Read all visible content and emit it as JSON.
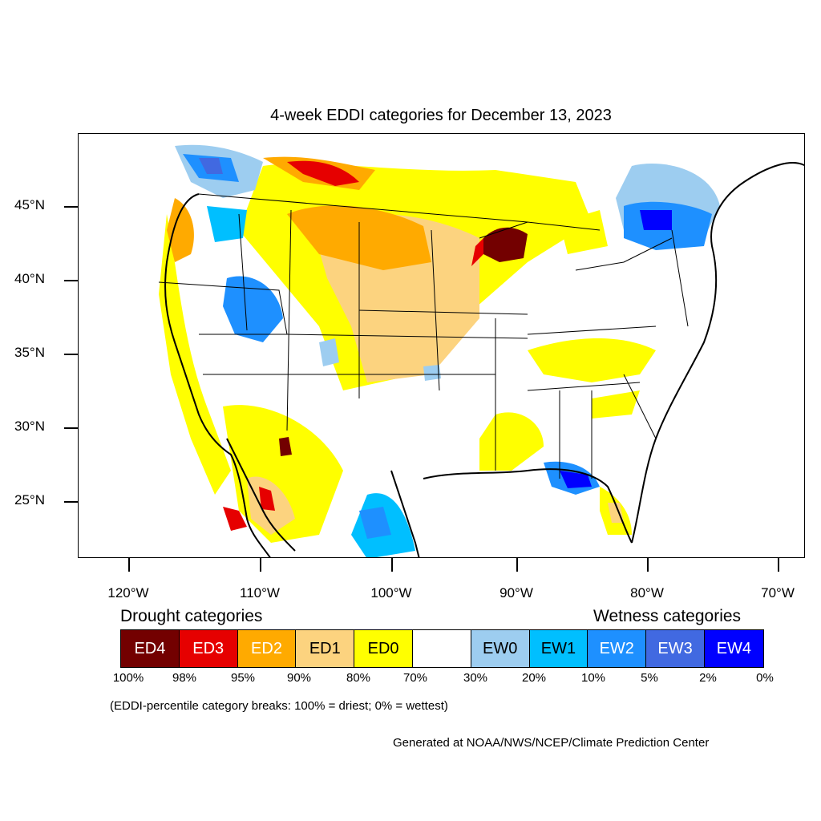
{
  "title": "4-week EDDI categories for December 13, 2023",
  "lat_labels": [
    "45°N",
    "40°N",
    "35°N",
    "30°N",
    "25°N"
  ],
  "lon_labels": [
    "120°W",
    "110°W",
    "100°W",
    "90°W",
    "80°W",
    "70°W"
  ],
  "legend": {
    "drought_heading": "Drought categories",
    "wetness_heading": "Wetness categories",
    "categories": [
      {
        "label": "ED4",
        "color": "#730000"
      },
      {
        "label": "ED3",
        "color": "#e60000"
      },
      {
        "label": "ED2",
        "color": "#ffaa00"
      },
      {
        "label": "ED1",
        "color": "#fcd37f"
      },
      {
        "label": "ED0",
        "color": "#ffff00"
      },
      {
        "label": "",
        "color": "#ffffff"
      },
      {
        "label": "EW0",
        "color": "#9dcdf0"
      },
      {
        "label": "EW1",
        "color": "#00bfff"
      },
      {
        "label": "EW2",
        "color": "#1e90ff"
      },
      {
        "label": "EW3",
        "color": "#4169e1"
      },
      {
        "label": "EW4",
        "color": "#0000ff"
      }
    ],
    "breaks": [
      "100%",
      "98%",
      "95%",
      "90%",
      "80%",
      "70%",
      "30%",
      "20%",
      "10%",
      "5%",
      "2%",
      "0%"
    ]
  },
  "note": "(EDDI-percentile category breaks: 100% = driest; 0% = wettest)",
  "credit": "Generated at NOAA/NWS/NCEP/Climate Prediction Center"
}
